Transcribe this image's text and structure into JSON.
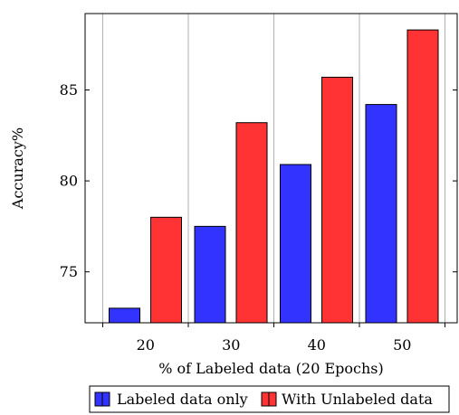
{
  "chart_data": {
    "type": "bar",
    "title": "",
    "xlabel": "% of Labeled data (20 Epochs)",
    "ylabel": "Accuracy%",
    "categories": [
      "20",
      "30",
      "40",
      "50"
    ],
    "series": [
      {
        "name": "Labeled data only",
        "values": [
          73.0,
          77.5,
          80.9,
          84.2
        ],
        "color": "#3333ff"
      },
      {
        "name": "With Unlabeled data",
        "values": [
          78.0,
          83.2,
          85.7,
          88.3
        ],
        "color": "#ff3333"
      }
    ],
    "yticks": [
      75,
      80,
      85
    ],
    "ylim": [
      72.2,
      89.2
    ],
    "grid": "vertical",
    "legend_position": "bottom-center"
  }
}
